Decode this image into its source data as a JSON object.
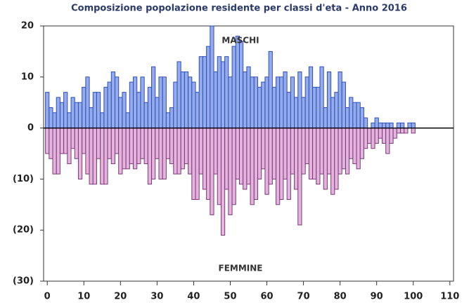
{
  "chart_data": {
    "type": "bar",
    "title": "Composizione popolazione residente per classi d'eta - Anno 2016",
    "x": [
      0,
      1,
      2,
      3,
      4,
      5,
      6,
      7,
      8,
      9,
      10,
      11,
      12,
      13,
      14,
      15,
      16,
      17,
      18,
      19,
      20,
      21,
      22,
      23,
      24,
      25,
      26,
      27,
      28,
      29,
      30,
      31,
      32,
      33,
      34,
      35,
      36,
      37,
      38,
      39,
      40,
      41,
      42,
      43,
      44,
      45,
      46,
      47,
      48,
      49,
      50,
      51,
      52,
      53,
      54,
      55,
      56,
      57,
      58,
      59,
      60,
      61,
      62,
      63,
      64,
      65,
      66,
      67,
      68,
      69,
      70,
      71,
      72,
      73,
      74,
      75,
      76,
      77,
      78,
      79,
      80,
      81,
      82,
      83,
      84,
      85,
      86,
      87,
      88,
      89,
      90,
      91,
      92,
      93,
      94,
      95,
      96,
      97,
      98,
      99,
      100,
      101
    ],
    "series": [
      {
        "name": "MASCHI",
        "color": "#95acec",
        "stroke": "#2f4fb8",
        "values": [
          7,
          4,
          3,
          6,
          5,
          7,
          3,
          6,
          5,
          5,
          8,
          10,
          4,
          7,
          7,
          3,
          8,
          9,
          11,
          10,
          6,
          7,
          3,
          9,
          10,
          7,
          10,
          5,
          8,
          12,
          6,
          10,
          10,
          3,
          4,
          9,
          13,
          11,
          11,
          10,
          9,
          7,
          14,
          14,
          16,
          20,
          11,
          14,
          13,
          14,
          10,
          16,
          18,
          17,
          11,
          12,
          10,
          10,
          8,
          9,
          10,
          15,
          8,
          10,
          10,
          11,
          7,
          10,
          6,
          11,
          6,
          10,
          12,
          8,
          8,
          12,
          4,
          11,
          6,
          7,
          11,
          9,
          4,
          6,
          5,
          5,
          4,
          2,
          0,
          1,
          2,
          1,
          1,
          1,
          1,
          0,
          1,
          1,
          0,
          1,
          1,
          0
        ]
      },
      {
        "name": "FEMMINE",
        "color": "#e4b4dc",
        "stroke": "#7a3a7a",
        "values": [
          -5,
          -6,
          -9,
          -9,
          -5,
          -5,
          -7,
          -4,
          -6,
          -10,
          -5,
          -9,
          -11,
          -11,
          -6,
          -11,
          -11,
          -6,
          -7,
          -5,
          -9,
          -8,
          -8,
          -7,
          -8,
          -7,
          -6,
          -7,
          -11,
          -10,
          -6,
          -10,
          -10,
          -6,
          -7,
          -9,
          -9,
          -8,
          -7,
          -9,
          -14,
          -14,
          -9,
          -12,
          -14,
          -17,
          -9,
          -15,
          -21,
          -12,
          -17,
          -15,
          -10,
          -11,
          -12,
          -11,
          -15,
          -14,
          -10,
          -8,
          -13,
          -11,
          -10,
          -15,
          -14,
          -10,
          -14,
          -9,
          -12,
          -19,
          -9,
          -7,
          -10,
          -10,
          -11,
          -9,
          -12,
          -9,
          -13,
          -12,
          -9,
          -8,
          -9,
          -6,
          -7,
          -8,
          -6,
          -4,
          -3,
          -4,
          -3,
          -2,
          -3,
          -5,
          -3,
          -2,
          -1,
          -1,
          -1,
          0,
          -1,
          0
        ]
      }
    ],
    "xlim": [
      -1,
      111
    ],
    "xticks": [
      0,
      10,
      20,
      30,
      40,
      50,
      60,
      70,
      80,
      90,
      100,
      110
    ],
    "ylim": [
      -30,
      20
    ],
    "yticks": [
      20,
      10,
      0,
      {
        "value": -10,
        "label": "(10)"
      },
      {
        "value": -20,
        "label": "(20)"
      },
      {
        "value": -30,
        "label": "(30)"
      }
    ]
  }
}
